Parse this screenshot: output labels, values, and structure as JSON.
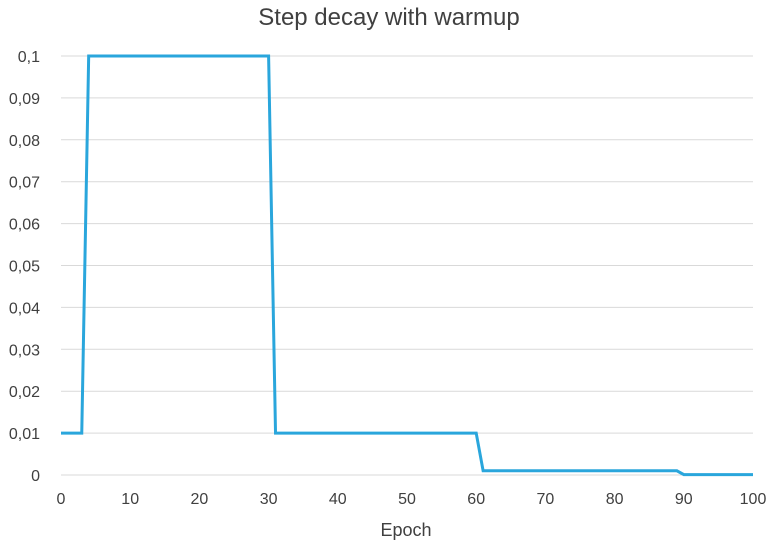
{
  "chart_data": {
    "type": "line",
    "title": "Step decay with warmup",
    "xlabel": "Epoch",
    "ylabel": "",
    "xlim": [
      0,
      100
    ],
    "ylim": [
      0,
      0.1
    ],
    "x_ticks": [
      "0",
      "10",
      "20",
      "30",
      "40",
      "50",
      "60",
      "70",
      "80",
      "90",
      "100"
    ],
    "y_ticks": [
      "0",
      "0,01",
      "0,02",
      "0,03",
      "0,04",
      "0,05",
      "0,06",
      "0,07",
      "0,08",
      "0,09",
      "0,1"
    ],
    "grid": "horizontal",
    "legend": "none",
    "color": "#2aa6dc",
    "series": [
      {
        "x": [
          0,
          1,
          2,
          3,
          4,
          5,
          10,
          15,
          20,
          25,
          29,
          30,
          31,
          35,
          40,
          45,
          50,
          55,
          59,
          60,
          61,
          65,
          70,
          75,
          80,
          85,
          89,
          90,
          95,
          100
        ],
        "y": [
          0.01,
          0.01,
          0.01,
          0.01,
          0.1,
          0.1,
          0.1,
          0.1,
          0.1,
          0.1,
          0.1,
          0.1,
          0.01,
          0.01,
          0.01,
          0.01,
          0.01,
          0.01,
          0.01,
          0.01,
          0.001,
          0.001,
          0.001,
          0.001,
          0.001,
          0.001,
          0.001,
          0.0001,
          0.0001,
          0.0001
        ]
      }
    ]
  }
}
